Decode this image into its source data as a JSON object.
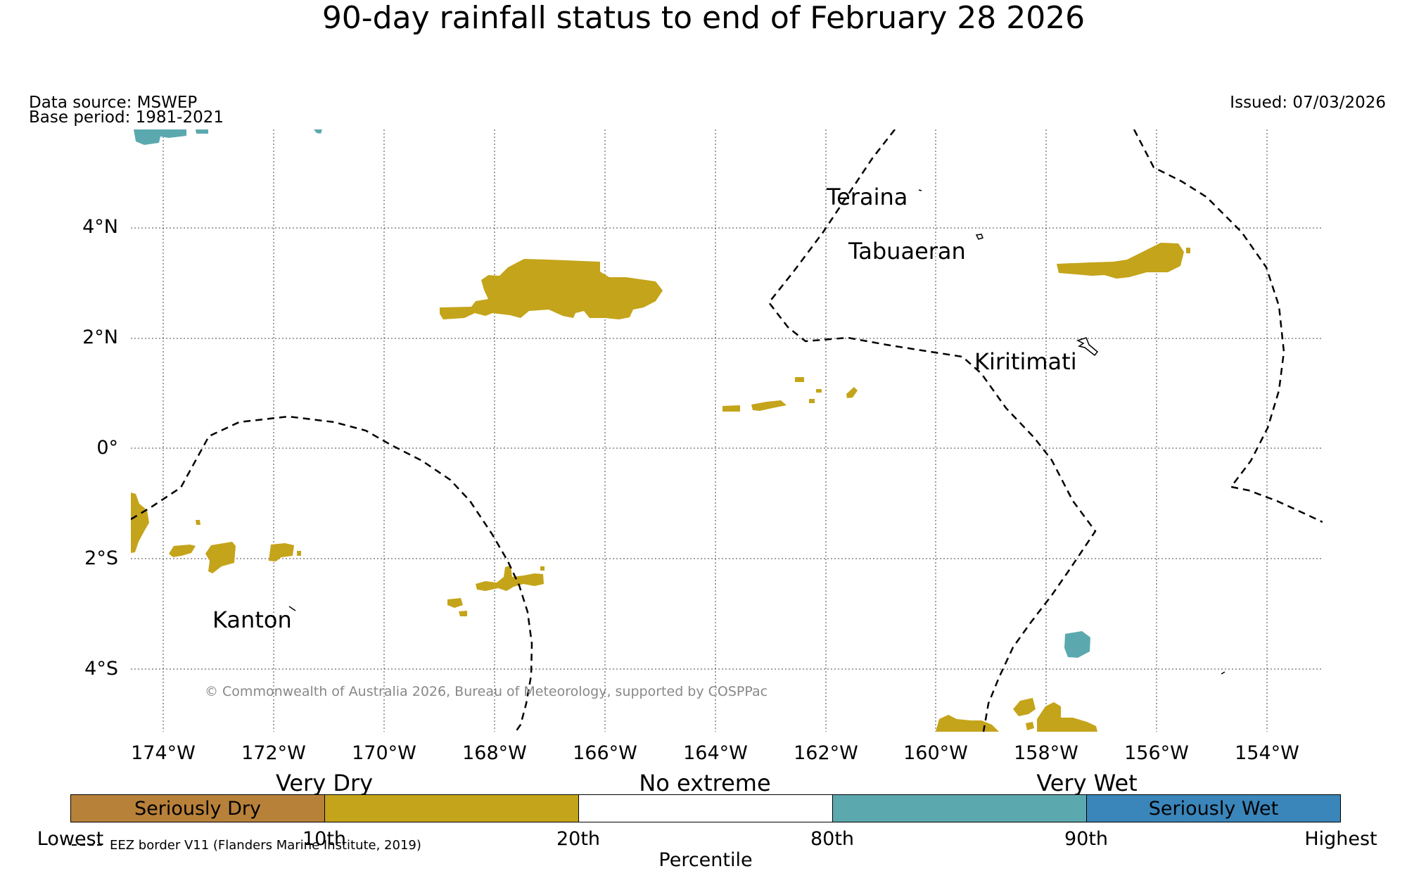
{
  "title": "90-day rainfall status to end of February 28 2026",
  "data_source": "Data source: MSWEP",
  "base_period": "Base period: 1981-2021",
  "issued": "Issued: 07/03/2026",
  "map": {
    "lat_labels": [
      "4°N",
      "2°N",
      "0°",
      "2°S",
      "4°S"
    ],
    "lon_labels": [
      "174°W",
      "172°W",
      "170°W",
      "168°W",
      "166°W",
      "164°W",
      "162°W",
      "160°W",
      "158°W",
      "156°W",
      "154°W"
    ],
    "places": [
      "Teraina",
      "Tabuaeran",
      "Kiritimati",
      "Kanton"
    ],
    "copyright": "© Commonwealth of Australia 2026, Bureau of Meteorology, supported by COSPPac"
  },
  "colorbar": {
    "categories": [
      "Very Dry",
      "No extreme",
      "Very Wet"
    ],
    "segments": [
      {
        "label": "Seriously Dry",
        "color": "#b8813a"
      },
      {
        "label": "",
        "color": "#c4a41a"
      },
      {
        "label": "",
        "color": "#ffffff"
      },
      {
        "label": "",
        "color": "#5ba9ae"
      },
      {
        "label": "Seriously Wet",
        "color": "#3a85ba"
      }
    ],
    "ticks": [
      "Lowest",
      "10th",
      "20th",
      "80th",
      "90th",
      "Highest"
    ],
    "axis_label": "Percentile"
  },
  "legend_note": "EEZ border V11 (Flanders Marine Institute, 2019)",
  "colors": {
    "very_dry": "#c4a41a",
    "very_wet": "#5ba9ae",
    "seriously_dry": "#b8813a",
    "seriously_wet": "#3a85ba"
  }
}
